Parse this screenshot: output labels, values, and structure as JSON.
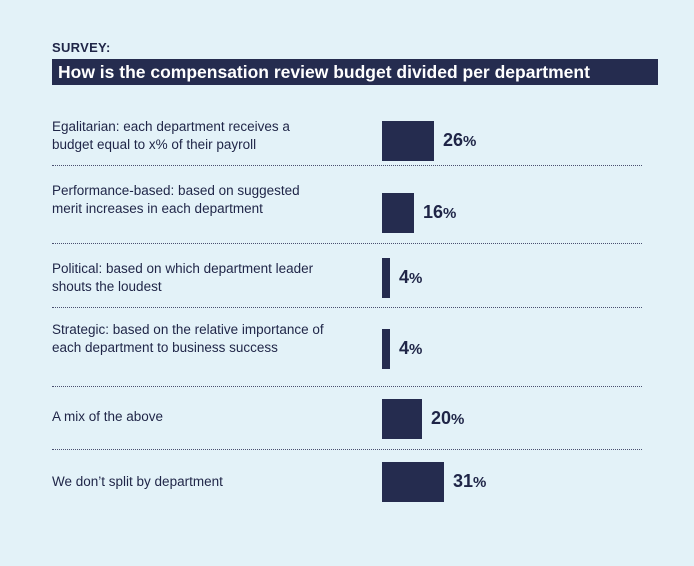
{
  "header": {
    "eyebrow": "SURVEY:",
    "title": "How is the compensation review budget divided per department"
  },
  "colors": {
    "background": "#e3f2f8",
    "bar": "#252c4f",
    "text": "#1f2547"
  },
  "chart_data": {
    "type": "bar",
    "orientation": "horizontal",
    "title": "How is the compensation review budget divided per department",
    "unit": "%",
    "categories": [
      "Egalitarian: each department receives a budget equal to x% of their payroll",
      "Performance-based: based on suggested merit increases in each department",
      "Political: based on which department leader shouts the loudest",
      "Strategic: based on the relative importance of each department to business success",
      "A mix of the above",
      "We don’t split by department"
    ],
    "values": [
      26,
      16,
      4,
      4,
      20,
      31
    ],
    "value_labels": [
      "26",
      "16",
      "4",
      "4",
      "20",
      "31"
    ],
    "value_suffix": "%"
  }
}
